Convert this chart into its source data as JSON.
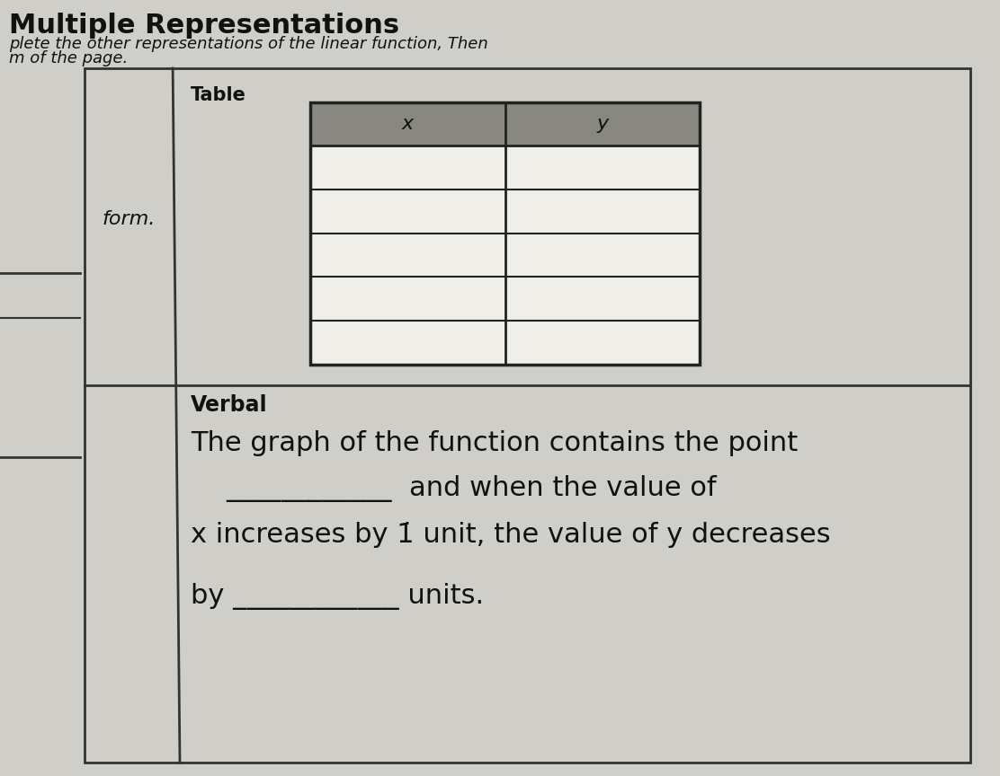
{
  "title": "Multiple Representations",
  "subtitle_line1": "plete the other representations of the linear function, Then",
  "subtitle_line2": "m of the page.",
  "bg_color": "#d0cec8",
  "content_bg": "#d4d2cc",
  "white_section": "#e8e6e0",
  "table_label": "Table",
  "col_header_x": "x",
  "col_header_y": "y",
  "header_bg": "#888880",
  "verbal_label": "Verbal",
  "verbal_line1": "The graph of the function contains the point",
  "verbal_line2": "and when the value of",
  "verbal_line3": "x increases by 1̇ unit, the value of y decreases",
  "verbal_line4": "by ____________ units.",
  "left_col_text": "form.",
  "title_fontsize": 22,
  "subtitle_fontsize": 13,
  "verbal_fontsize": 22,
  "table_border_color": "#222222",
  "line_color": "#333333",
  "text_color": "#111111"
}
